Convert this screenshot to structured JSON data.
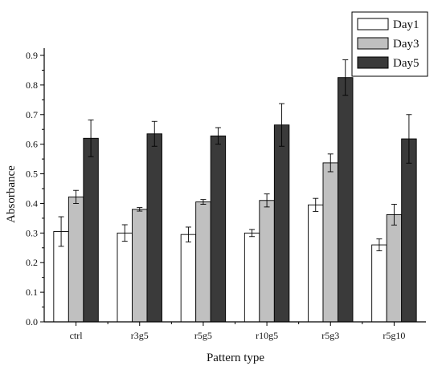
{
  "chart_data": {
    "type": "bar",
    "title": "",
    "xlabel": "Pattern type",
    "ylabel": "Absorbance",
    "categories": [
      "ctrl",
      "r3g5",
      "r5g5",
      "r10g5",
      "r5g3",
      "r5g10"
    ],
    "ylim": [
      0,
      0.9
    ],
    "yticks": [
      "0.0",
      "0.1",
      "0.2",
      "0.3",
      "0.4",
      "0.5",
      "0.6",
      "0.7",
      "0.8",
      "0.9"
    ],
    "grid": false,
    "legend_position": "top-right",
    "series": [
      {
        "name": "Day1",
        "color": "#ffffff",
        "values": [
          0.305,
          0.3,
          0.295,
          0.3,
          0.395,
          0.26
        ],
        "errors": [
          0.05,
          0.028,
          0.025,
          0.012,
          0.022,
          0.02
        ]
      },
      {
        "name": "Day3",
        "color": "#c0c0c0",
        "values": [
          0.422,
          0.38,
          0.405,
          0.41,
          0.537,
          0.362
        ],
        "errors": [
          0.022,
          0.006,
          0.008,
          0.022,
          0.03,
          0.035
        ]
      },
      {
        "name": "Day5",
        "color": "#3a3a3a",
        "values": [
          0.62,
          0.635,
          0.628,
          0.665,
          0.825,
          0.618
        ],
        "errors": [
          0.062,
          0.042,
          0.028,
          0.072,
          0.06,
          0.082
        ]
      }
    ]
  }
}
